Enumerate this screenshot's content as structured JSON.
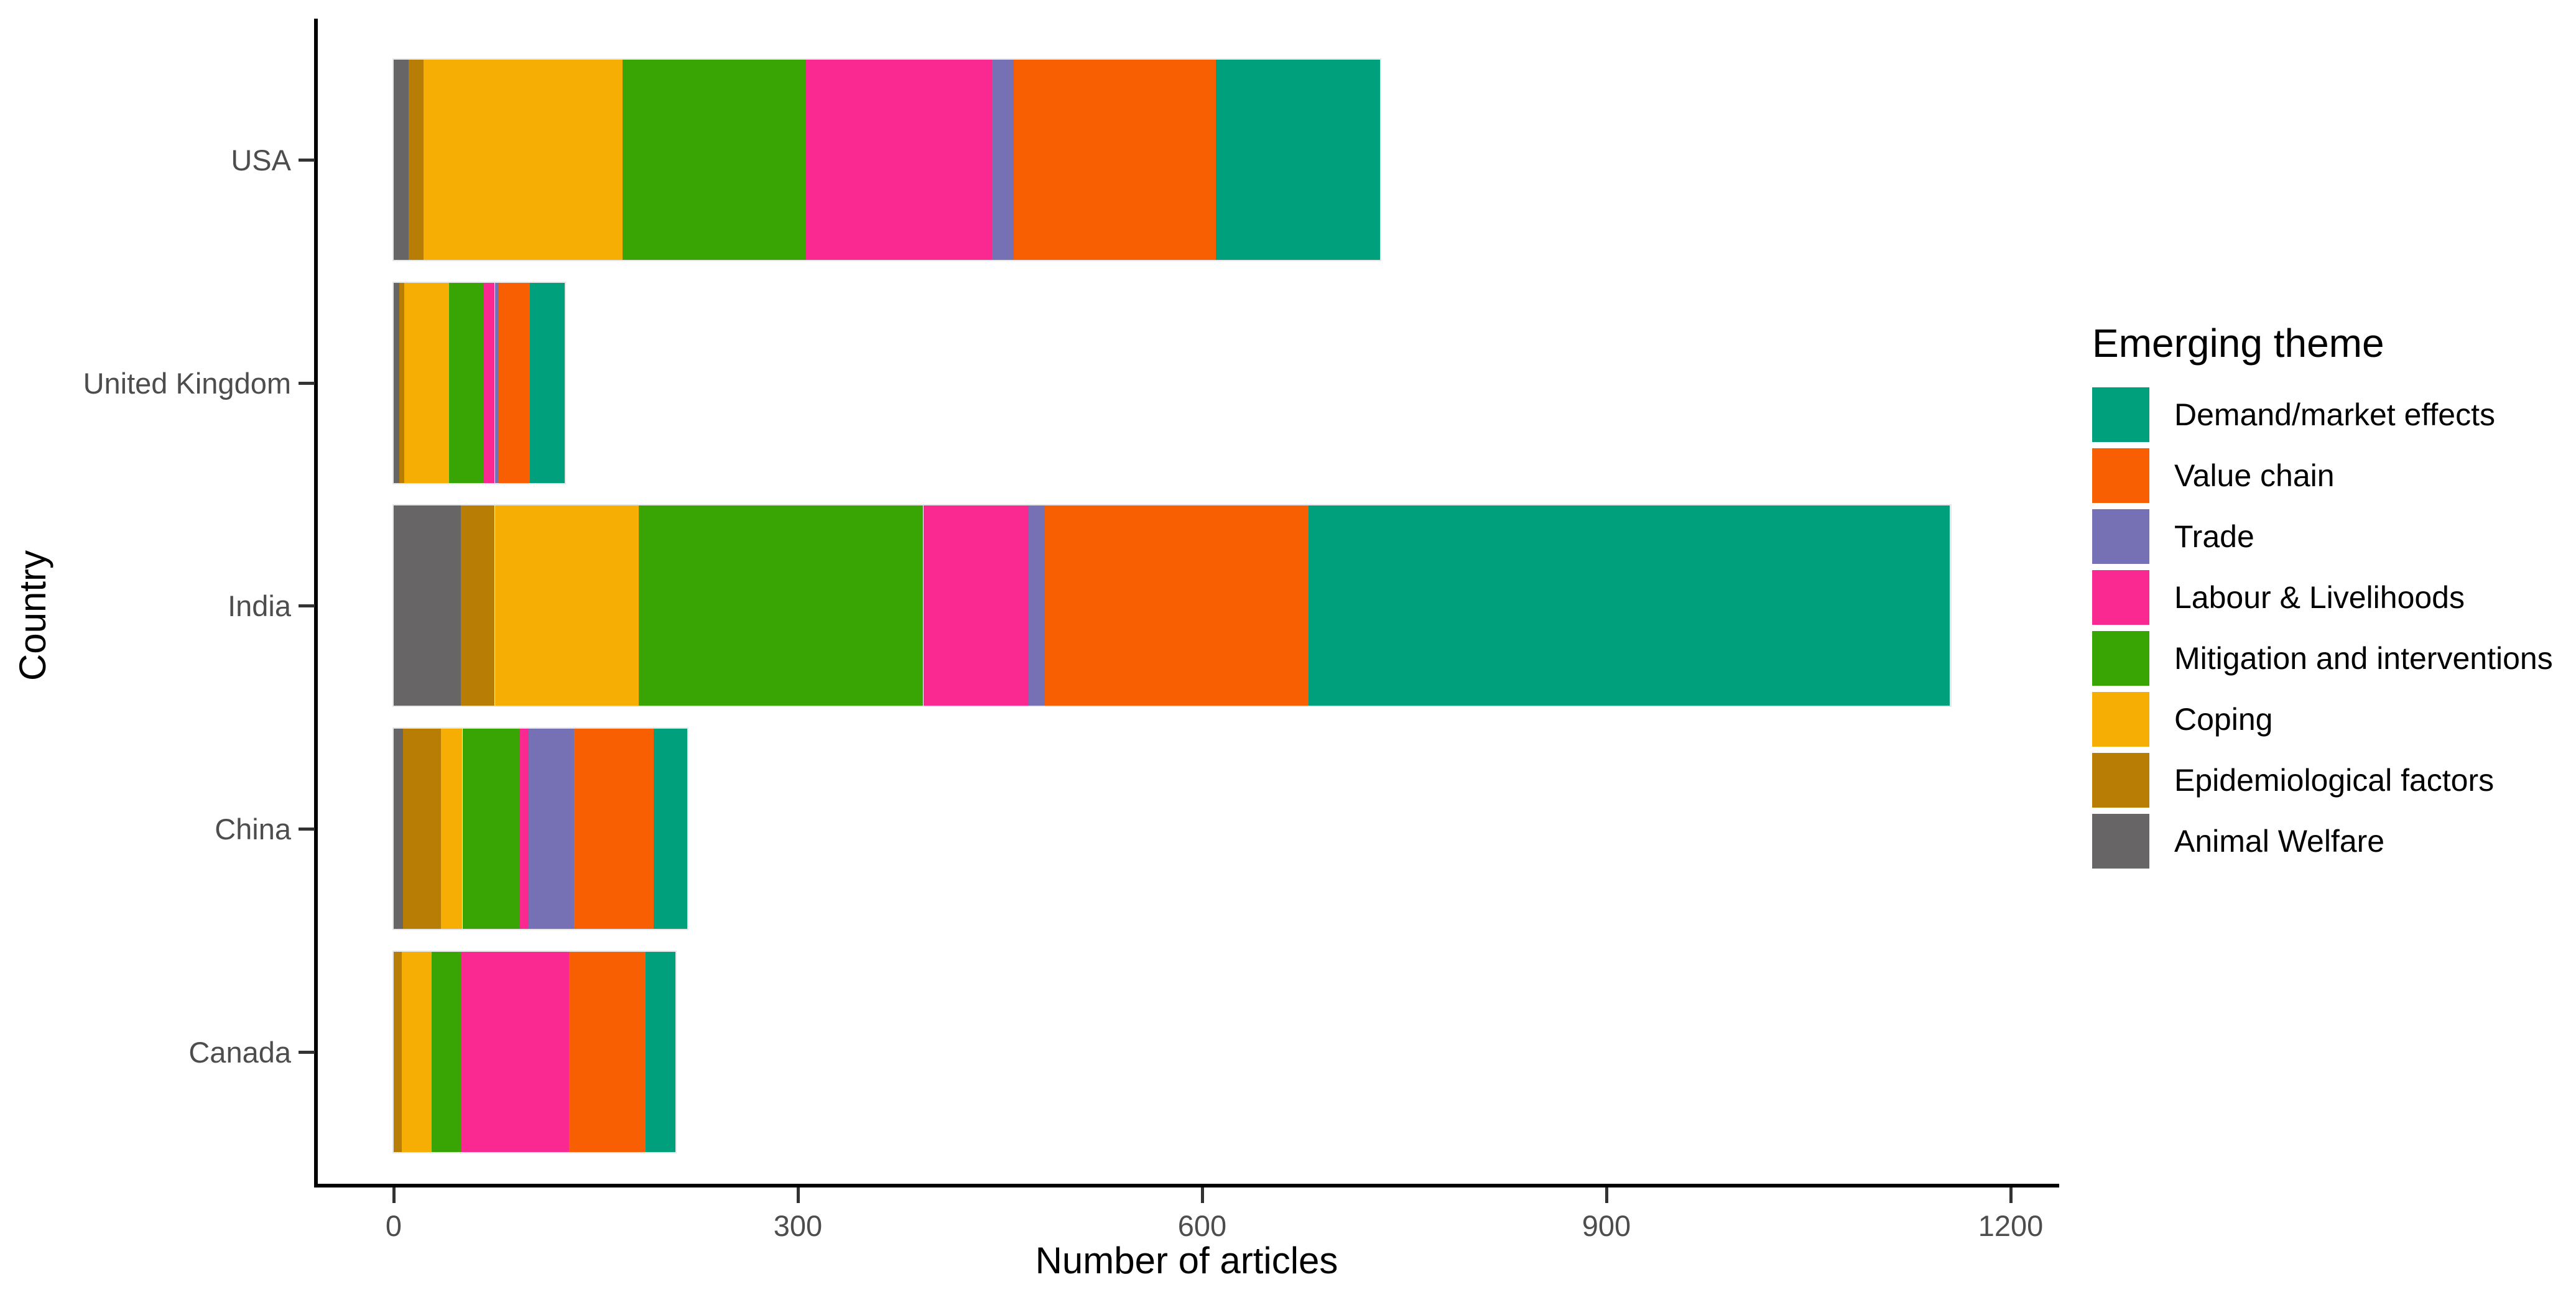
{
  "figure": {
    "background": "#FFFFFF",
    "axis_color": "#000000",
    "tick_label_color": "#4D4D4D"
  },
  "chart_data": {
    "type": "bar",
    "orientation": "horizontal",
    "stacked": true,
    "title": "",
    "xlabel": "Number of articles",
    "ylabel": "Country",
    "xlim": [
      0,
      1260
    ],
    "x_ticks": [
      0,
      300,
      600,
      900,
      1200
    ],
    "grid": "none",
    "legend_position": "right",
    "categories": [
      "USA",
      "United Kingdom",
      "India",
      "China",
      "Canada"
    ],
    "series": [
      {
        "name": "Animal Welfare",
        "color": "#676566",
        "values": [
          11,
          4,
          50,
          7,
          0
        ]
      },
      {
        "name": "Epidemiological factors",
        "color": "#B77D05",
        "values": [
          11,
          4,
          25,
          28,
          6
        ]
      },
      {
        "name": "Coping",
        "color": "#F7AE04",
        "values": [
          148,
          33,
          107,
          16,
          22
        ]
      },
      {
        "name": "Mitigation and interventions",
        "color": "#38A505",
        "values": [
          136,
          26,
          211,
          42,
          22
        ]
      },
      {
        "name": "Labour & Livelihoods",
        "color": "#FA2991",
        "values": [
          138,
          8,
          78,
          7,
          80
        ]
      },
      {
        "name": "Trade",
        "color": "#7671B5",
        "values": [
          16,
          3,
          12,
          34,
          0
        ]
      },
      {
        "name": "Value chain",
        "color": "#F85F02",
        "values": [
          150,
          23,
          196,
          59,
          57
        ]
      },
      {
        "name": "Demand/market effects",
        "color": "#00A07D",
        "values": [
          122,
          26,
          476,
          25,
          22
        ]
      }
    ],
    "totals": [
      732,
      127,
      1155,
      218,
      209
    ],
    "legend": {
      "title": "Emerging theme",
      "items": [
        {
          "label": "Demand/market effects",
          "color": "#00A07D"
        },
        {
          "label": "Value chain",
          "color": "#F85F02"
        },
        {
          "label": "Trade",
          "color": "#7671B5"
        },
        {
          "label": "Labour & Livelihoods",
          "color": "#FA2991"
        },
        {
          "label": "Mitigation and interventions",
          "color": "#38A505"
        },
        {
          "label": "Coping",
          "color": "#F7AE04"
        },
        {
          "label": "Epidemiological factors",
          "color": "#B77D05"
        },
        {
          "label": "Animal Welfare",
          "color": "#676566"
        }
      ]
    }
  }
}
